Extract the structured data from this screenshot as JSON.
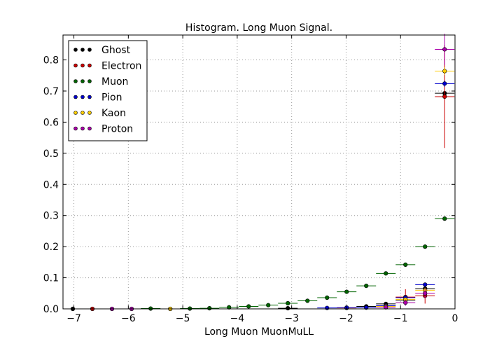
{
  "chart_data": {
    "type": "scatter",
    "title": "Histogram. Long Muon Signal.",
    "xlabel": "Long Muon MuonMuLL",
    "ylabel": "",
    "xlim": [
      -7.2,
      0.0
    ],
    "ylim": [
      0.0,
      0.88
    ],
    "x_ticks": [
      -7,
      -6,
      -5,
      -4,
      -3,
      -2,
      -1,
      0
    ],
    "x_tick_labels": [
      "−7",
      "−6",
      "−5",
      "−4",
      "−3",
      "−2",
      "−1",
      "0"
    ],
    "y_ticks": [
      0.0,
      0.1,
      0.2,
      0.3,
      0.4,
      0.5,
      0.6,
      0.7,
      0.8
    ],
    "y_tick_labels": [
      "0.0",
      "0.1",
      "0.2",
      "0.3",
      "0.4",
      "0.5",
      "0.6",
      "0.7",
      "0.8"
    ],
    "grid": true,
    "legend_position": "top-left",
    "bin_halfwidth": 0.18,
    "series": [
      {
        "name": "Ghost",
        "color": "#000000",
        "points": [
          {
            "x": -7.02,
            "y": 0.0,
            "yerr": 0.0
          },
          {
            "x": -0.19,
            "y": 0.693,
            "yerr": 0.006
          },
          {
            "x": -0.55,
            "y": 0.065,
            "yerr": 0.01
          },
          {
            "x": -0.91,
            "y": 0.028,
            "yerr": 0.006
          },
          {
            "x": -1.27,
            "y": 0.016,
            "yerr": 0.004
          },
          {
            "x": -1.63,
            "y": 0.008,
            "yerr": 0.003
          },
          {
            "x": -3.07,
            "y": 0.002,
            "yerr": 0.001
          }
        ]
      },
      {
        "name": "Electron",
        "color": "#cc0000",
        "points": [
          {
            "x": -6.66,
            "y": 0.0,
            "yerr": 0.0
          },
          {
            "x": -0.19,
            "y": 0.682,
            "yerr": 0.165
          },
          {
            "x": -0.55,
            "y": 0.042,
            "yerr": 0.025
          },
          {
            "x": -0.91,
            "y": 0.038,
            "yerr": 0.025
          },
          {
            "x": -1.99,
            "y": 0.003,
            "yerr": 0.003
          }
        ]
      },
      {
        "name": "Muon",
        "color": "#006400",
        "points": [
          {
            "x": -0.19,
            "y": 0.29,
            "yerr": 0.006
          },
          {
            "x": -0.55,
            "y": 0.2,
            "yerr": 0.006
          },
          {
            "x": -0.91,
            "y": 0.142,
            "yerr": 0.005
          },
          {
            "x": -1.27,
            "y": 0.114,
            "yerr": 0.005
          },
          {
            "x": -1.63,
            "y": 0.074,
            "yerr": 0.004
          },
          {
            "x": -1.99,
            "y": 0.055,
            "yerr": 0.003
          },
          {
            "x": -2.35,
            "y": 0.036,
            "yerr": 0.003
          },
          {
            "x": -2.71,
            "y": 0.026,
            "yerr": 0.003
          },
          {
            "x": -3.07,
            "y": 0.018,
            "yerr": 0.002
          },
          {
            "x": -3.43,
            "y": 0.012,
            "yerr": 0.002
          },
          {
            "x": -3.79,
            "y": 0.008,
            "yerr": 0.002
          },
          {
            "x": -4.15,
            "y": 0.005,
            "yerr": 0.001
          },
          {
            "x": -4.51,
            "y": 0.002,
            "yerr": 0.001
          },
          {
            "x": -4.87,
            "y": 0.001,
            "yerr": 0.001
          },
          {
            "x": -5.59,
            "y": 0.001,
            "yerr": 0.001
          }
        ]
      },
      {
        "name": "Pion",
        "color": "#0000cc",
        "points": [
          {
            "x": -0.19,
            "y": 0.724,
            "yerr": 0.01
          },
          {
            "x": -0.55,
            "y": 0.078,
            "yerr": 0.006
          },
          {
            "x": -0.91,
            "y": 0.036,
            "yerr": 0.004
          },
          {
            "x": -1.27,
            "y": 0.01,
            "yerr": 0.002
          },
          {
            "x": -1.63,
            "y": 0.004,
            "yerr": 0.001
          },
          {
            "x": -1.99,
            "y": 0.004,
            "yerr": 0.001
          },
          {
            "x": -2.35,
            "y": 0.003,
            "yerr": 0.001
          }
        ]
      },
      {
        "name": "Kaon",
        "color": "#ffcc00",
        "points": [
          {
            "x": -0.19,
            "y": 0.764,
            "yerr": 0.012
          },
          {
            "x": -0.55,
            "y": 0.06,
            "yerr": 0.008
          },
          {
            "x": -0.91,
            "y": 0.03,
            "yerr": 0.006
          },
          {
            "x": -1.27,
            "y": 0.008,
            "yerr": 0.003
          },
          {
            "x": -5.23,
            "y": 0.0,
            "yerr": 0.0
          }
        ]
      },
      {
        "name": "Proton",
        "color": "#aa00aa",
        "points": [
          {
            "x": -6.3,
            "y": 0.0,
            "yerr": 0.0
          },
          {
            "x": -5.94,
            "y": 0.0,
            "yerr": 0.0
          },
          {
            "x": -0.19,
            "y": 0.834,
            "yerr": 0.05
          },
          {
            "x": -0.55,
            "y": 0.05,
            "yerr": 0.015
          },
          {
            "x": -0.91,
            "y": 0.02,
            "yerr": 0.01
          },
          {
            "x": -1.27,
            "y": 0.005,
            "yerr": 0.004
          }
        ]
      }
    ]
  }
}
